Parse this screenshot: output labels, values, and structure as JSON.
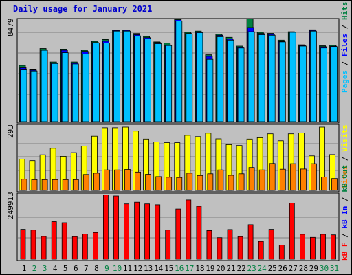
{
  "title": "Daily usage for January 2021",
  "colors": {
    "background": "#c0c0c0",
    "title": "#0000cc",
    "hits": "#008040",
    "files": "#0000ff",
    "pages": "#00c0ff",
    "visits": "#ffff00",
    "sites": "#ff8000",
    "kbin": "#0000ff",
    "kbout": "#008040",
    "kbf": "#ff0000",
    "day_weekday": "#000000",
    "day_weekend": "#008040"
  },
  "panels": {
    "top": {
      "max_label": "8479",
      "legend": [
        "Pages",
        "Files",
        "Hits"
      ]
    },
    "middle": {
      "max_label": "293",
      "legend": [
        "Visits",
        "Sites"
      ]
    },
    "bottom": {
      "max_label": "249913",
      "legend": [
        "kB F",
        "kB In",
        "kB Out"
      ]
    }
  },
  "chart_data": [
    {
      "type": "bar",
      "title": "Daily usage for January 2021",
      "categories": [
        "1",
        "2",
        "3",
        "4",
        "5",
        "6",
        "7",
        "8",
        "9",
        "10",
        "11",
        "12",
        "13",
        "14",
        "15",
        "16",
        "17",
        "18",
        "19",
        "20",
        "21",
        "22",
        "23",
        "24",
        "25",
        "26",
        "27",
        "28",
        "29",
        "30",
        "31"
      ],
      "weekend_days": [
        2,
        3,
        9,
        10,
        16,
        17,
        23,
        24,
        30,
        31
      ],
      "ylim": [
        0,
        8479
      ],
      "series": [
        {
          "name": "Hits",
          "values": [
            4700,
            4350,
            6100,
            4980,
            6050,
            4980,
            5950,
            6700,
            6850,
            7650,
            7650,
            7350,
            7100,
            6650,
            6550,
            8600,
            7450,
            7550,
            5580,
            7290,
            7030,
            6300,
            8560,
            7450,
            7360,
            6800,
            7500,
            6410,
            7660,
            6330,
            6380
          ]
        },
        {
          "name": "Files",
          "values": [
            4500,
            4300,
            6000,
            4900,
            5960,
            4900,
            5860,
            6600,
            6710,
            7600,
            7620,
            7250,
            7000,
            6600,
            6400,
            8500,
            7350,
            7480,
            5450,
            7200,
            6900,
            6200,
            7850,
            7350,
            7290,
            6700,
            7400,
            6350,
            7610,
            6250,
            6300
          ]
        },
        {
          "name": "Pages",
          "values": [
            4320,
            4230,
            5950,
            4850,
            5750,
            4820,
            5650,
            6560,
            6560,
            7550,
            7550,
            7150,
            6900,
            6500,
            6350,
            8400,
            7300,
            7420,
            5200,
            7080,
            6800,
            6140,
            7500,
            7250,
            7200,
            6650,
            7450,
            6300,
            7550,
            6150,
            6250
          ]
        }
      ]
    },
    {
      "type": "bar",
      "categories": [
        "1",
        "2",
        "3",
        "4",
        "5",
        "6",
        "7",
        "8",
        "9",
        "10",
        "11",
        "12",
        "13",
        "14",
        "15",
        "16",
        "17",
        "18",
        "19",
        "20",
        "21",
        "22",
        "23",
        "24",
        "25",
        "26",
        "27",
        "28",
        "29",
        "30",
        "31"
      ],
      "ylim": [
        0,
        293
      ],
      "series": [
        {
          "name": "Visits",
          "values": [
            145,
            138,
            165,
            195,
            158,
            175,
            205,
            251,
            290,
            290,
            293,
            275,
            238,
            225,
            221,
            221,
            255,
            249,
            265,
            239,
            212,
            208,
            238,
            244,
            262,
            230,
            262,
            266,
            160,
            293,
            166
          ]
        },
        {
          "name": "Sites",
          "values": [
            52,
            50,
            50,
            50,
            50,
            50,
            74,
            80,
            95,
            95,
            97,
            85,
            75,
            64,
            61,
            60,
            80,
            69,
            77,
            95,
            70,
            77,
            106,
            95,
            125,
            98,
            124,
            99,
            124,
            62,
            55
          ]
        }
      ]
    },
    {
      "type": "bar",
      "categories": [
        "1",
        "2",
        "3",
        "4",
        "5",
        "6",
        "7",
        "8",
        "9",
        "10",
        "11",
        "12",
        "13",
        "14",
        "15",
        "16",
        "17",
        "18",
        "19",
        "20",
        "21",
        "22",
        "23",
        "24",
        "25",
        "26",
        "27",
        "28",
        "29",
        "30",
        "31"
      ],
      "ylim": [
        0,
        249913
      ],
      "series": [
        {
          "name": "kB F",
          "values": [
            118000,
            115000,
            90000,
            148000,
            144000,
            89000,
            99000,
            105000,
            254000,
            250000,
            218000,
            225000,
            218000,
            215000,
            115000,
            198000,
            234000,
            209000,
            113000,
            85000,
            117000,
            89000,
            136000,
            70000,
            118000,
            56000,
            221000,
            98000,
            86000,
            98000,
            96000
          ]
        }
      ]
    }
  ]
}
